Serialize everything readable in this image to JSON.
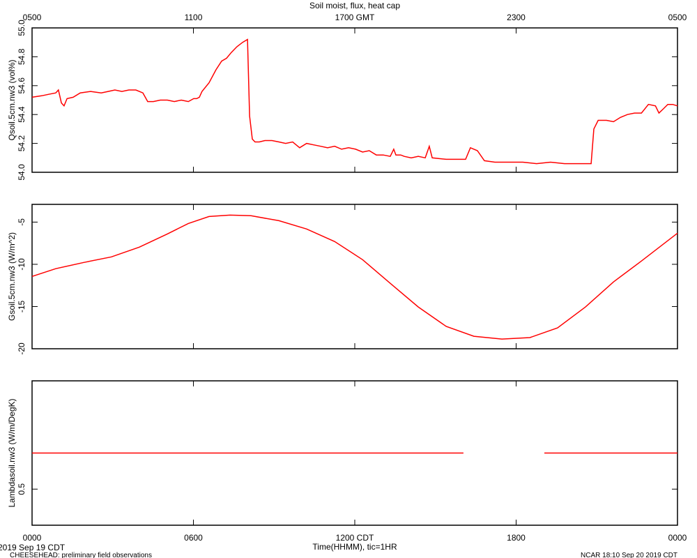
{
  "chart_data": [
    {
      "type": "line",
      "title": "Soil moist, flux, heat cap",
      "ylabel": "Qsoil.5cm.nw3 (vol%)",
      "xlim": [
        0,
        24
      ],
      "ylim": [
        54,
        55
      ],
      "yticks": [
        {
          "value": 54,
          "label": "54.0"
        },
        54.2,
        54.4,
        54.6,
        54.8,
        {
          "value": 55,
          "label": "55.0"
        }
      ],
      "x2ticks": [
        {
          "value": 0,
          "label": "0500"
        },
        {
          "value": 6,
          "label": "1100"
        },
        {
          "value": 12,
          "label": "1700 GMT"
        },
        {
          "value": 18,
          "label": "2300"
        },
        {
          "value": 24,
          "label": "0500"
        }
      ],
      "x": [
        0,
        0.36,
        0.62,
        0.88,
        0.98,
        1.09,
        1.19,
        1.3,
        1.53,
        1.79,
        2.18,
        2.57,
        2.83,
        3.08,
        3.34,
        3.6,
        3.86,
        4.12,
        4.3,
        4.51,
        4.77,
        5.03,
        5.29,
        5.55,
        5.81,
        6.01,
        6.12,
        6.22,
        6.32,
        6.58,
        6.84,
        7.05,
        7.23,
        7.41,
        7.62,
        7.83,
        8.01,
        8.09,
        8.19,
        8.29,
        8.45,
        8.66,
        8.92,
        9.18,
        9.43,
        9.69,
        9.95,
        10.21,
        10.47,
        10.73,
        10.99,
        11.25,
        11.51,
        11.77,
        12.03,
        12.29,
        12.54,
        12.8,
        13.06,
        13.32,
        13.45,
        13.53,
        13.71,
        13.84,
        14.1,
        14.36,
        14.62,
        14.77,
        14.88,
        15.4,
        15.91,
        16.12,
        16.3,
        16.56,
        16.82,
        17.21,
        17.73,
        18.25,
        18.76,
        19.28,
        19.8,
        20.32,
        20.79,
        20.89,
        21.05,
        21.36,
        21.62,
        21.88,
        22.14,
        22.4,
        22.66,
        22.92,
        23.18,
        23.31,
        23.48,
        23.64,
        23.82,
        24
      ],
      "series": [
        {
          "name": "Qsoil.5cm.nw3",
          "color": "#ff0000",
          "values": [
            54.52,
            54.53,
            54.54,
            54.55,
            54.57,
            54.48,
            54.46,
            54.51,
            54.52,
            54.55,
            54.56,
            54.55,
            54.56,
            54.57,
            54.56,
            54.57,
            54.57,
            54.55,
            54.49,
            54.49,
            54.5,
            54.5,
            54.49,
            54.5,
            54.49,
            54.51,
            54.51,
            54.52,
            54.56,
            54.62,
            54.71,
            54.77,
            54.79,
            54.83,
            54.87,
            54.9,
            54.92,
            54.39,
            54.23,
            54.21,
            54.21,
            54.22,
            54.22,
            54.21,
            54.2,
            54.21,
            54.17,
            54.2,
            54.19,
            54.18,
            54.17,
            54.18,
            54.16,
            54.17,
            54.16,
            54.14,
            54.15,
            54.12,
            54.12,
            54.11,
            54.16,
            54.12,
            54.12,
            54.11,
            54.1,
            54.11,
            54.1,
            54.18,
            54.1,
            54.09,
            54.09,
            54.09,
            54.17,
            54.15,
            54.08,
            54.07,
            54.07,
            54.07,
            54.06,
            54.07,
            54.06,
            54.06,
            54.06,
            54.3,
            54.36,
            54.36,
            54.35,
            54.38,
            54.4,
            54.41,
            54.41,
            54.47,
            54.46,
            54.41,
            54.44,
            54.47,
            54.47,
            54.46
          ]
        }
      ]
    },
    {
      "type": "line",
      "ylabel": "Gsoil.5cm.nw3 (W/m^2)",
      "xlim": [
        0,
        24
      ],
      "ylim": [
        -20,
        -2.9
      ],
      "yticks": [
        -20,
        -15,
        -10,
        -5
      ],
      "x": [
        0,
        0.88,
        1.92,
        2.95,
        3.99,
        5.03,
        5.81,
        6.58,
        7.36,
        8.14,
        9.18,
        10.21,
        11.25,
        12.29,
        13.32,
        14.36,
        15.4,
        16.43,
        17.47,
        18.51,
        19.54,
        20.58,
        21.62,
        22.66,
        24
      ],
      "series": [
        {
          "name": "Gsoil.5cm.nw3",
          "color": "#ff0000",
          "values": [
            -11.43,
            -10.52,
            -9.78,
            -9.12,
            -7.96,
            -6.4,
            -5.16,
            -4.34,
            -4.17,
            -4.25,
            -4.83,
            -5.82,
            -7.3,
            -9.45,
            -12.25,
            -15.05,
            -17.36,
            -18.52,
            -18.85,
            -18.68,
            -17.53,
            -15.05,
            -12.09,
            -9.61,
            -6.31
          ]
        }
      ]
    },
    {
      "type": "line",
      "ylabel": "Lambdasoil.nw3 (W/m/DegK)",
      "xlabel": "Time(HHMM), tic=1HR",
      "xlim": [
        0,
        24
      ],
      "ylim": [
        0.4,
        0.8
      ],
      "yticks": [
        0.5
      ],
      "xticks": [
        {
          "value": 0,
          "label": "0000"
        },
        {
          "value": 6,
          "label": "0600"
        },
        {
          "value": 12,
          "label": "1200 CDT"
        },
        {
          "value": 18,
          "label": "1800"
        },
        {
          "value": 24,
          "label": "0000"
        }
      ],
      "x": [
        0,
        16.04,
        16.05,
        19.05,
        24
      ],
      "series": [
        {
          "name": "Lambdasoil.nw3",
          "color": "#ff0000",
          "values": [
            0.6,
            0.6,
            null,
            0.6,
            0.6
          ]
        }
      ]
    }
  ],
  "footer": {
    "date": "2019 Sep 19 CDT",
    "project": "CHEESEHEAD: preliminary field observations",
    "stamp": "NCAR 18:10 Sep 20 2019 CDT"
  }
}
